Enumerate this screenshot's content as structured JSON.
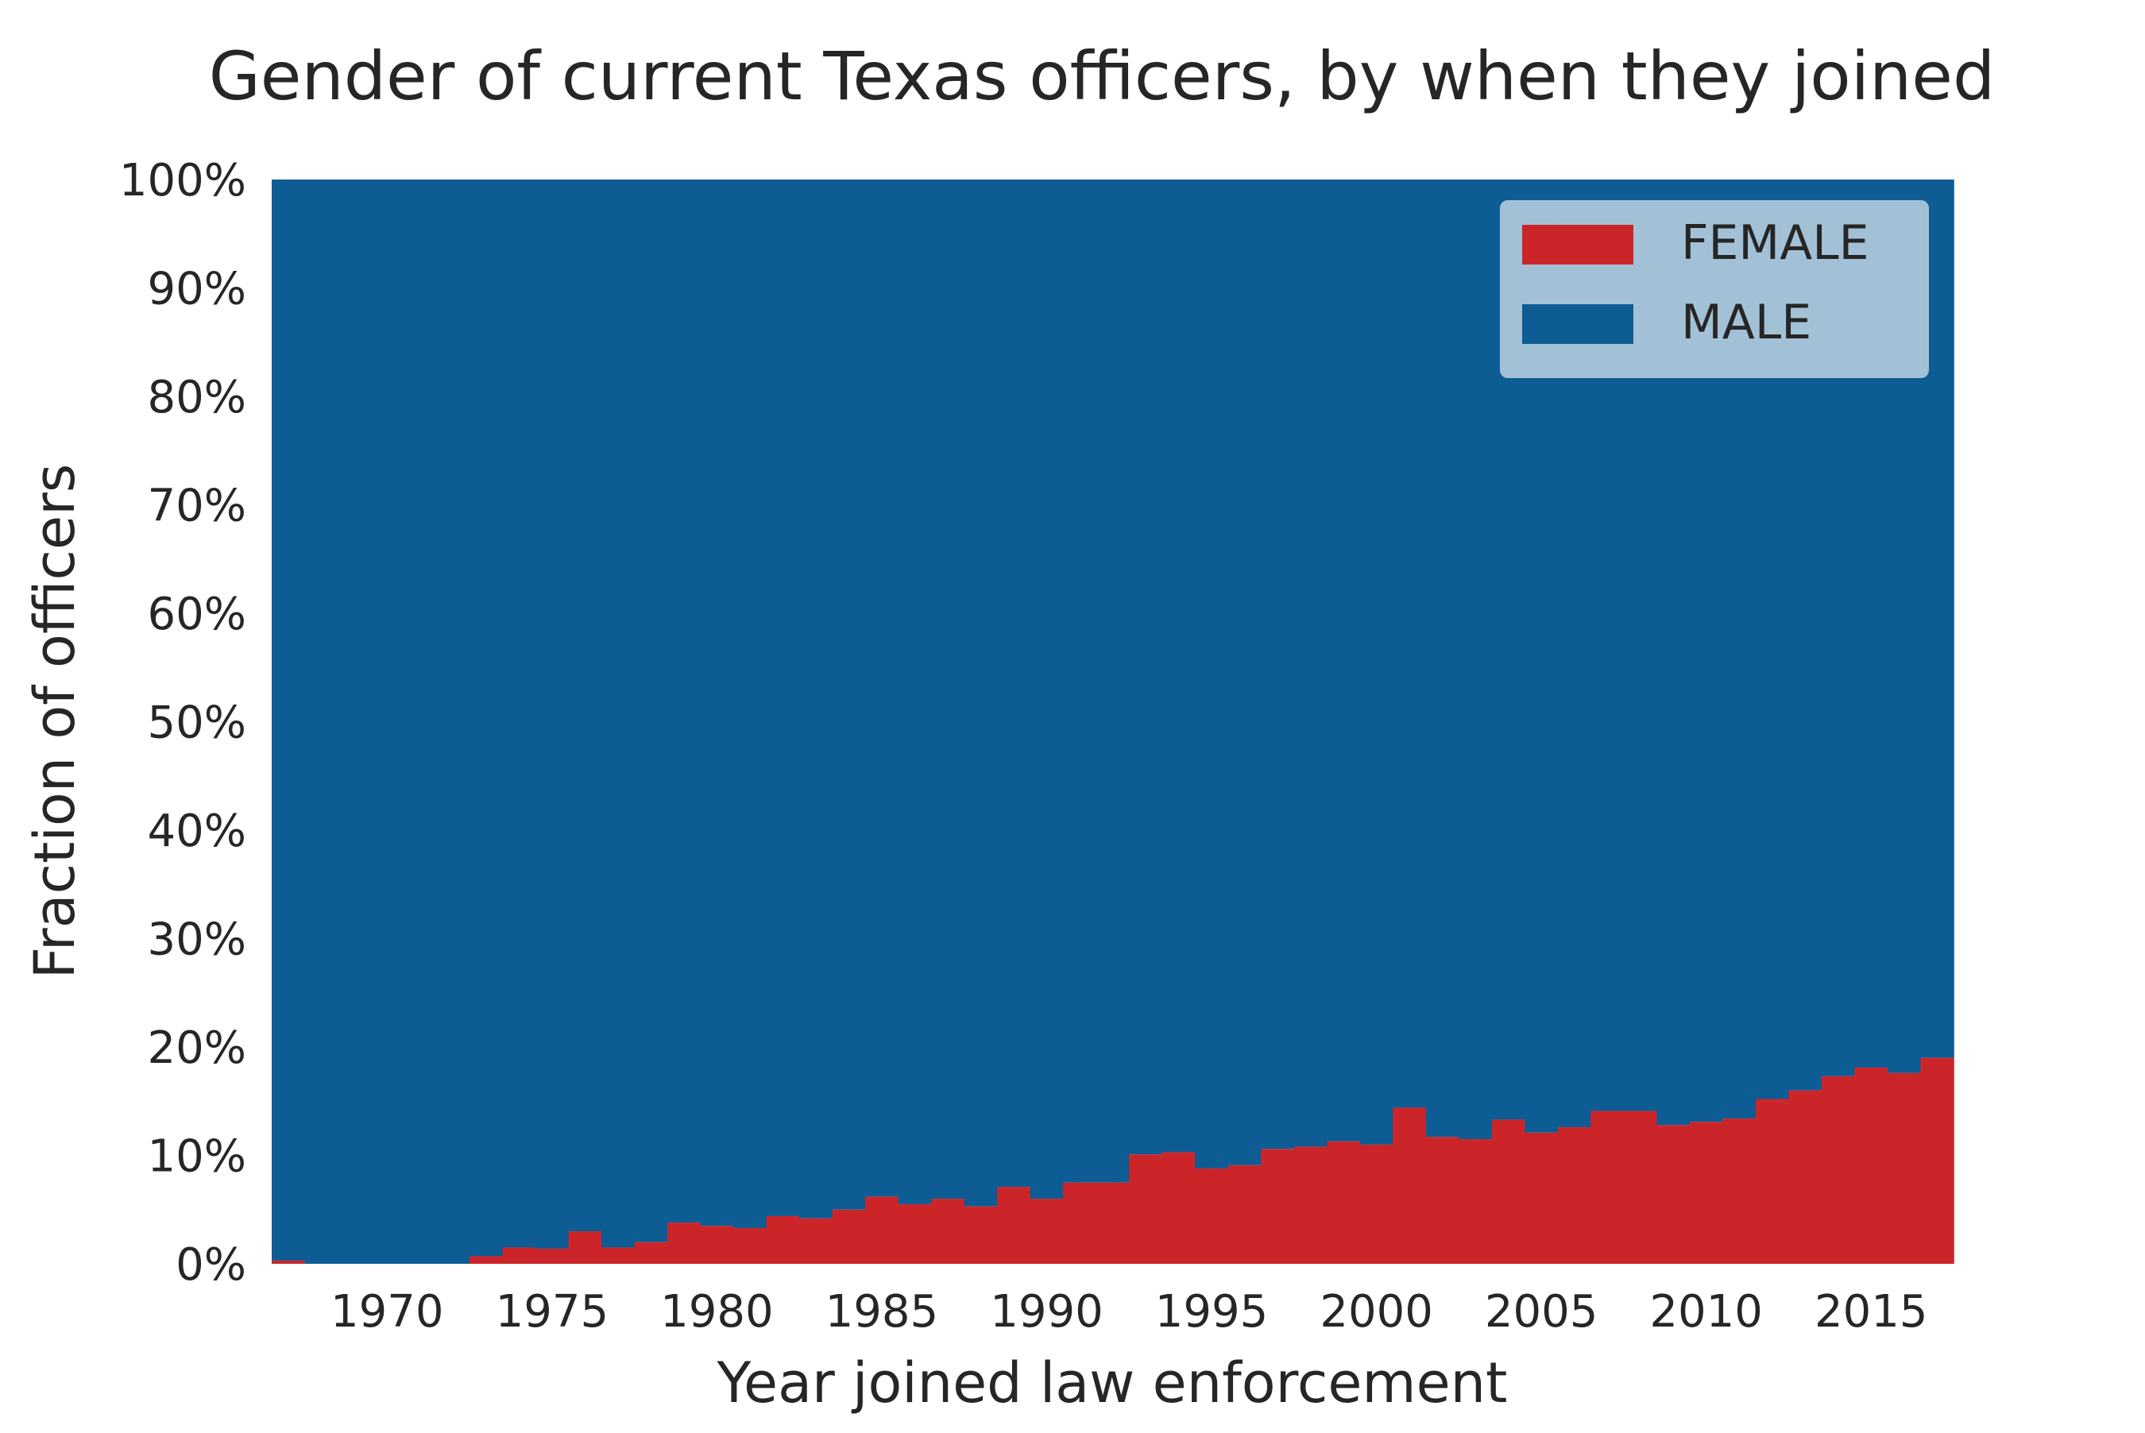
{
  "chart_data": {
    "type": "area",
    "stacked": true,
    "normalized": true,
    "title": "Gender of current Texas officers, by when they joined",
    "xlabel": "Year joined law enforcement",
    "ylabel": "Fraction of officers",
    "xlim": [
      1966.5,
      2017.5
    ],
    "ylim": [
      0,
      1
    ],
    "x_ticks": [
      1970,
      1975,
      1980,
      1985,
      1990,
      1995,
      2000,
      2005,
      2010,
      2015
    ],
    "x_tick_labels": [
      "1970",
      "1975",
      "1980",
      "1985",
      "1990",
      "1995",
      "2000",
      "2005",
      "2010",
      "2015"
    ],
    "y_ticks": [
      0,
      0.1,
      0.2,
      0.3,
      0.4,
      0.5,
      0.6,
      0.7,
      0.8,
      0.9,
      1.0
    ],
    "y_tick_labels": [
      "0%",
      "10%",
      "20%",
      "30%",
      "40%",
      "50%",
      "60%",
      "70%",
      "80%",
      "90%",
      "100%"
    ],
    "grid": true,
    "legend_position": "top-right",
    "x": [
      1967,
      1968,
      1969,
      1970,
      1971,
      1972,
      1973,
      1974,
      1975,
      1976,
      1977,
      1978,
      1979,
      1980,
      1981,
      1982,
      1983,
      1984,
      1985,
      1986,
      1987,
      1988,
      1989,
      1990,
      1991,
      1992,
      1993,
      1994,
      1995,
      1996,
      1997,
      1998,
      1999,
      2000,
      2001,
      2002,
      2003,
      2004,
      2005,
      2006,
      2007,
      2008,
      2009,
      2010,
      2011,
      2012,
      2013,
      2014,
      2015,
      2016,
      2017
    ],
    "series": [
      {
        "name": "FEMALE",
        "color": "#cc2529",
        "values": [
          0.003,
          0,
          0,
          0,
          0,
          0,
          0.007,
          0.015,
          0.014,
          0.03,
          0.015,
          0.02,
          0.038,
          0.035,
          0.033,
          0.044,
          0.042,
          0.05,
          0.062,
          0.055,
          0.06,
          0.053,
          0.071,
          0.06,
          0.075,
          0.075,
          0.101,
          0.103,
          0.088,
          0.091,
          0.106,
          0.108,
          0.113,
          0.11,
          0.144,
          0.117,
          0.115,
          0.133,
          0.121,
          0.126,
          0.141,
          0.141,
          0.128,
          0.131,
          0.134,
          0.152,
          0.16,
          0.173,
          0.181,
          0.176,
          0.19
        ]
      },
      {
        "name": "MALE",
        "color": "#0e5c94",
        "values": [
          0.997,
          1,
          1,
          1,
          1,
          1,
          0.993,
          0.985,
          0.986,
          0.97,
          0.985,
          0.98,
          0.962,
          0.965,
          0.967,
          0.956,
          0.958,
          0.95,
          0.938,
          0.945,
          0.94,
          0.947,
          0.929,
          0.94,
          0.925,
          0.925,
          0.899,
          0.897,
          0.912,
          0.909,
          0.894,
          0.892,
          0.887,
          0.89,
          0.856,
          0.883,
          0.885,
          0.867,
          0.879,
          0.874,
          0.859,
          0.859,
          0.872,
          0.869,
          0.866,
          0.848,
          0.84,
          0.827,
          0.819,
          0.824,
          0.81
        ]
      }
    ]
  }
}
